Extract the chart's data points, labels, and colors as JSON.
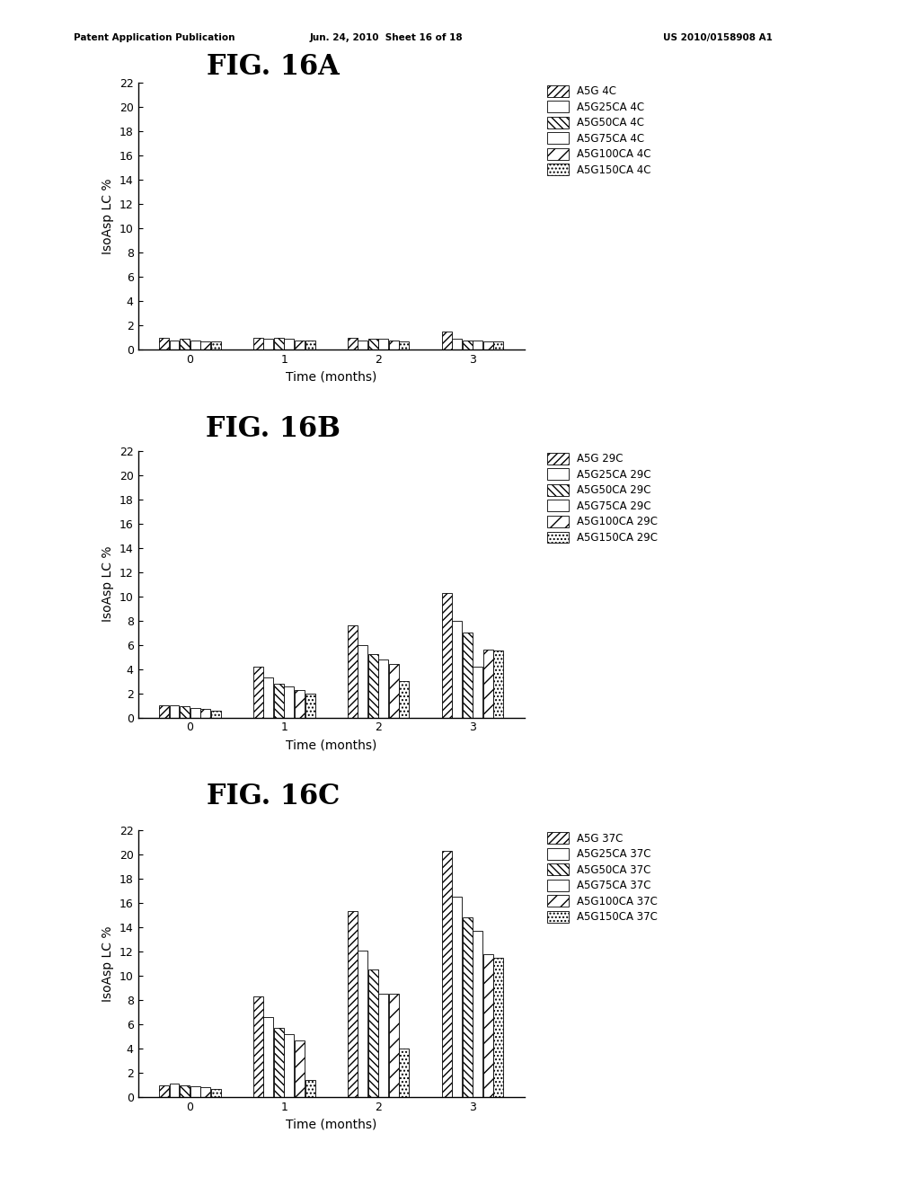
{
  "fig_title_A": "FIG. 16A",
  "fig_title_B": "FIG. 16B",
  "fig_title_C": "FIG. 16C",
  "xlabel": "Time (months)",
  "ylabel": "IsoAsp LC %",
  "ylim": [
    0,
    22
  ],
  "yticks": [
    0,
    2,
    4,
    6,
    8,
    10,
    12,
    14,
    16,
    18,
    20,
    22
  ],
  "xticks": [
    0,
    1,
    2,
    3
  ],
  "time_points": [
    0,
    1,
    2,
    3
  ],
  "legend_labels_A": [
    "A5G 4C",
    "A5G25CA 4C",
    "A5G50CA 4C",
    "A5G75CA 4C",
    "A5G100CA 4C",
    "A5G150CA 4C"
  ],
  "legend_labels_B": [
    "A5G 29C",
    "A5G25CA 29C",
    "A5G50CA 29C",
    "A5G75CA 29C",
    "A5G100CA 29C",
    "A5G150CA 29C"
  ],
  "legend_labels_C": [
    "A5G 37C",
    "A5G25CA 37C",
    "A5G50CA 37C",
    "A5G75CA 37C",
    "A5G100CA 37C",
    "A5G150CA 37C"
  ],
  "data_A": [
    [
      1.0,
      1.0,
      1.0,
      1.5
    ],
    [
      0.8,
      0.9,
      0.8,
      0.9
    ],
    [
      0.9,
      1.0,
      0.9,
      0.8
    ],
    [
      0.8,
      0.9,
      0.9,
      0.8
    ],
    [
      0.7,
      0.8,
      0.8,
      0.7
    ],
    [
      0.7,
      0.8,
      0.7,
      0.7
    ]
  ],
  "data_B": [
    [
      1.0,
      4.2,
      7.6,
      10.3
    ],
    [
      1.0,
      3.3,
      6.0,
      8.0
    ],
    [
      0.9,
      2.8,
      5.2,
      7.0
    ],
    [
      0.8,
      2.6,
      4.8,
      4.2
    ],
    [
      0.7,
      2.3,
      4.4,
      5.6
    ],
    [
      0.6,
      2.0,
      3.0,
      5.5
    ]
  ],
  "data_C": [
    [
      1.0,
      8.3,
      15.3,
      20.3
    ],
    [
      1.1,
      6.6,
      12.1,
      16.5
    ],
    [
      1.0,
      5.7,
      10.5,
      14.8
    ],
    [
      0.9,
      5.2,
      8.5,
      13.7
    ],
    [
      0.8,
      4.7,
      8.5,
      11.8
    ],
    [
      0.7,
      1.4,
      4.0,
      11.5
    ]
  ],
  "header_left": "Patent Application Publication",
  "header_mid": "Jun. 24, 2010  Sheet 16 of 18",
  "header_right": "US 2010/0158908 A1",
  "bar_width": 0.11,
  "xlim": [
    -0.55,
    3.55
  ]
}
